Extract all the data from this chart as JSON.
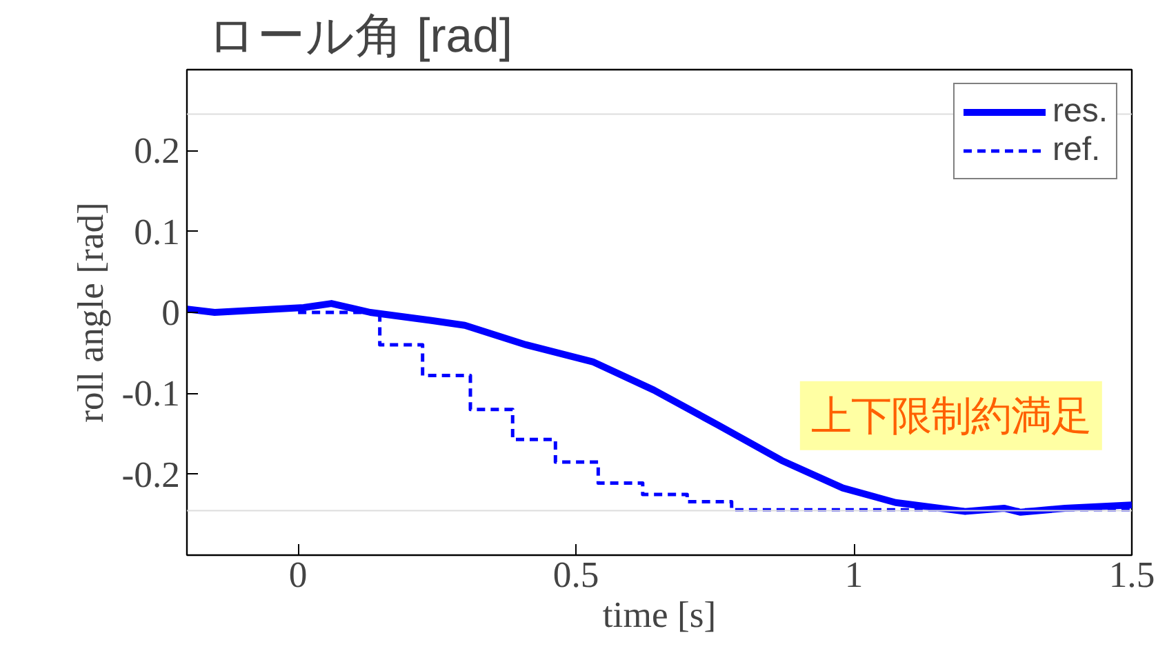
{
  "chart_data": {
    "type": "line",
    "title": "ロール角 [rad]",
    "xlabel": "time [s]",
    "ylabel": "roll angle [rad]",
    "xlim": [
      -0.2,
      1.5
    ],
    "xticks": [
      0,
      0.5,
      1,
      1.5
    ],
    "ylim": [
      -0.3,
      0.3
    ],
    "yticks": [
      -0.2,
      -0.1,
      0,
      0.1,
      0.2
    ],
    "grid": false,
    "legend": "top right",
    "series": [
      {
        "name": "res.",
        "color": "#0000ff",
        "line_style": "solid",
        "x": [
          -0.2,
          -0.15,
          0.01,
          0.06,
          0.13,
          0.24,
          0.3,
          0.41,
          0.53,
          0.64,
          0.755,
          0.87,
          0.98,
          1.075,
          1.2,
          1.27,
          1.3,
          1.38,
          1.5
        ],
        "values": [
          0.004,
          0,
          0.006,
          0.011,
          0,
          -0.01,
          -0.016,
          -0.04,
          -0.061,
          -0.096,
          -0.139,
          -0.183,
          -0.217,
          -0.235,
          -0.246,
          -0.242,
          -0.247,
          -0.242,
          -0.238
        ]
      },
      {
        "name": "ref.",
        "color": "#0000ff",
        "line_style": "dashed",
        "type": "step",
        "x": [
          0,
          0.147,
          0.224,
          0.31,
          0.386,
          0.463,
          0.54,
          0.62,
          0.7,
          0.78,
          1.5
        ],
        "values": [
          0,
          -0.04,
          -0.078,
          -0.12,
          -0.157,
          -0.185,
          -0.211,
          -0.225,
          -0.234,
          -0.244,
          -0.244
        ]
      }
    ],
    "ref_lines": [
      {
        "axis": "y",
        "value": 0.245,
        "color": "#dddddd"
      },
      {
        "axis": "y",
        "value": -0.245,
        "color": "#dddddd"
      }
    ],
    "annotations": [
      {
        "text": "上下限制約満足",
        "x": 1.3,
        "y": -0.247
      }
    ]
  }
}
